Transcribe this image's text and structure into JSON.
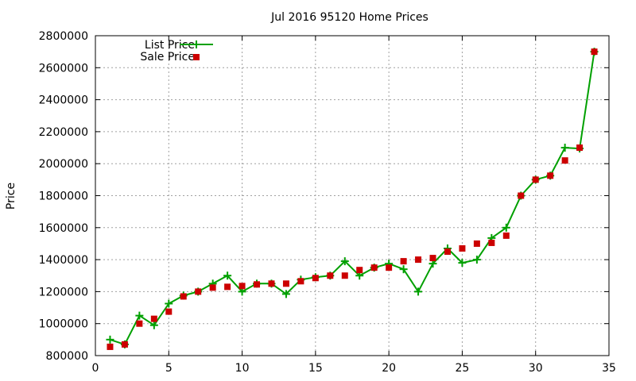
{
  "chart_data": {
    "type": "line",
    "title": "Jul 2016 95120 Home Prices",
    "xlabel": "",
    "ylabel": "Price",
    "xlim": [
      0,
      35
    ],
    "ylim": [
      800000,
      2800000
    ],
    "xticks": [
      0,
      5,
      10,
      15,
      20,
      25,
      30,
      35
    ],
    "yticks": [
      800000,
      1000000,
      1200000,
      1400000,
      1600000,
      1800000,
      2000000,
      2200000,
      2400000,
      2600000,
      2800000
    ],
    "grid": true,
    "legend_position": "top-left",
    "series": [
      {
        "name": "List Price",
        "style": "line-with-plus-markers",
        "color": "#00a000",
        "x": [
          1,
          2,
          3,
          4,
          5,
          6,
          7,
          8,
          9,
          10,
          11,
          12,
          13,
          14,
          15,
          16,
          17,
          18,
          19,
          20,
          21,
          22,
          23,
          24,
          25,
          26,
          27,
          28,
          29,
          30,
          31,
          32,
          33,
          34
        ],
        "values": [
          900000,
          870000,
          1050000,
          990000,
          1125000,
          1175000,
          1200000,
          1250000,
          1300000,
          1200000,
          1250000,
          1250000,
          1185000,
          1275000,
          1290000,
          1300000,
          1390000,
          1300000,
          1350000,
          1375000,
          1340000,
          1200000,
          1375000,
          1470000,
          1380000,
          1400000,
          1535000,
          1600000,
          1800000,
          1900000,
          1925000,
          2100000,
          2095000,
          2700000
        ]
      },
      {
        "name": "Sale Price",
        "style": "square-markers",
        "color": "#cc0000",
        "x": [
          1,
          2,
          3,
          4,
          5,
          6,
          7,
          8,
          9,
          10,
          11,
          12,
          13,
          14,
          15,
          16,
          17,
          18,
          19,
          20,
          21,
          22,
          23,
          24,
          25,
          26,
          27,
          28,
          29,
          30,
          31,
          32,
          33,
          34
        ],
        "values": [
          855000,
          870000,
          1000000,
          1030000,
          1075000,
          1170000,
          1200000,
          1225000,
          1230000,
          1235000,
          1245000,
          1250000,
          1250000,
          1265000,
          1285000,
          1300000,
          1300000,
          1335000,
          1350000,
          1350000,
          1390000,
          1400000,
          1410000,
          1450000,
          1470000,
          1500000,
          1505000,
          1550000,
          1800000,
          1900000,
          1925000,
          2020000,
          2100000,
          2700000
        ]
      }
    ]
  }
}
